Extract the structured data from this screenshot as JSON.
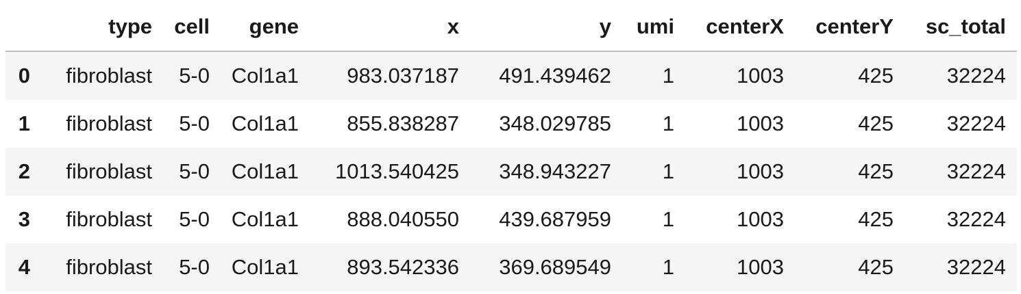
{
  "table": {
    "columns": [
      "",
      "type",
      "cell",
      "gene",
      "x",
      "y",
      "umi",
      "centerX",
      "centerY",
      "sc_total"
    ],
    "rows": [
      {
        "index": "0",
        "type": "fibroblast",
        "cell": "5-0",
        "gene": "Col1a1",
        "x": "983.037187",
        "y": "491.439462",
        "umi": "1",
        "centerX": "1003",
        "centerY": "425",
        "sc_total": "32224"
      },
      {
        "index": "1",
        "type": "fibroblast",
        "cell": "5-0",
        "gene": "Col1a1",
        "x": "855.838287",
        "y": "348.029785",
        "umi": "1",
        "centerX": "1003",
        "centerY": "425",
        "sc_total": "32224"
      },
      {
        "index": "2",
        "type": "fibroblast",
        "cell": "5-0",
        "gene": "Col1a1",
        "x": "1013.540425",
        "y": "348.943227",
        "umi": "1",
        "centerX": "1003",
        "centerY": "425",
        "sc_total": "32224"
      },
      {
        "index": "3",
        "type": "fibroblast",
        "cell": "5-0",
        "gene": "Col1a1",
        "x": "888.040550",
        "y": "439.687959",
        "umi": "1",
        "centerX": "1003",
        "centerY": "425",
        "sc_total": "32224"
      },
      {
        "index": "4",
        "type": "fibroblast",
        "cell": "5-0",
        "gene": "Col1a1",
        "x": "893.542336",
        "y": "369.689549",
        "umi": "1",
        "centerX": "1003",
        "centerY": "425",
        "sc_total": "32224"
      }
    ]
  },
  "colors": {
    "stripe": "#f5f5f5",
    "header_border": "#bdbdbd",
    "text": "#1a1a1a"
  }
}
